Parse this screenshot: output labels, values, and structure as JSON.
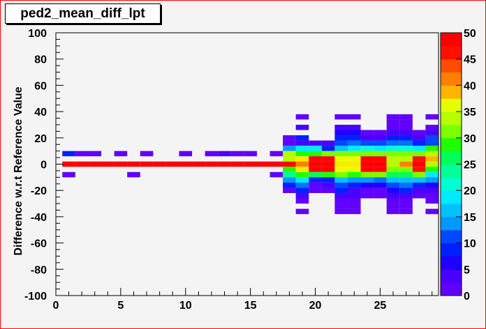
{
  "title": "ped2_mean_diff_lpt",
  "chart_data": {
    "type": "heatmap",
    "title": "ped2_mean_diff_lpt",
    "xlabel": "",
    "ylabel": "Difference w.r.t Reference Value",
    "xlim": [
      0,
      29.5
    ],
    "ylim": [
      -100,
      100
    ],
    "x_ticks": [
      0,
      5,
      10,
      15,
      20,
      25
    ],
    "y_ticks": [
      -100,
      -80,
      -60,
      -40,
      -20,
      0,
      20,
      40,
      60,
      80,
      100
    ],
    "color_scale": {
      "min": 0,
      "max": 50,
      "ticks": [
        0,
        5,
        10,
        15,
        20,
        25,
        30,
        35,
        40,
        45,
        50
      ]
    },
    "bin_width_x": 1,
    "bin_height_y": 4,
    "cells": [
      {
        "x": 1,
        "y": 0,
        "v": 50
      },
      {
        "x": 1,
        "y": 8,
        "v": 7
      },
      {
        "x": 1,
        "y": -8,
        "v": 2
      },
      {
        "x": 2,
        "y": 0,
        "v": 50
      },
      {
        "x": 2,
        "y": 8,
        "v": 2
      },
      {
        "x": 3,
        "y": 0,
        "v": 50
      },
      {
        "x": 3,
        "y": 8,
        "v": 2
      },
      {
        "x": 4,
        "y": 0,
        "v": 50
      },
      {
        "x": 5,
        "y": 0,
        "v": 50
      },
      {
        "x": 5,
        "y": 8,
        "v": 2
      },
      {
        "x": 6,
        "y": 0,
        "v": 50
      },
      {
        "x": 6,
        "y": -8,
        "v": 2
      },
      {
        "x": 7,
        "y": 0,
        "v": 50
      },
      {
        "x": 7,
        "y": 8,
        "v": 2
      },
      {
        "x": 8,
        "y": 0,
        "v": 50
      },
      {
        "x": 9,
        "y": 0,
        "v": 50
      },
      {
        "x": 10,
        "y": 0,
        "v": 50
      },
      {
        "x": 10,
        "y": 8,
        "v": 2
      },
      {
        "x": 11,
        "y": 0,
        "v": 50
      },
      {
        "x": 12,
        "y": 0,
        "v": 50
      },
      {
        "x": 12,
        "y": 8,
        "v": 2
      },
      {
        "x": 13,
        "y": 0,
        "v": 50
      },
      {
        "x": 13,
        "y": 8,
        "v": 4
      },
      {
        "x": 14,
        "y": 0,
        "v": 50
      },
      {
        "x": 14,
        "y": 8,
        "v": 2
      },
      {
        "x": 15,
        "y": 0,
        "v": 50
      },
      {
        "x": 15,
        "y": 8,
        "v": 2
      },
      {
        "x": 16,
        "y": 0,
        "v": 50
      },
      {
        "x": 17,
        "y": 0,
        "v": 50
      },
      {
        "x": 17,
        "y": 8,
        "v": 2
      },
      {
        "x": 17,
        "y": -8,
        "v": 2
      },
      {
        "x": 18,
        "y": 0,
        "v": 50
      },
      {
        "x": 18,
        "y": 20,
        "v": 2
      },
      {
        "x": 18,
        "y": 16,
        "v": 2
      },
      {
        "x": 18,
        "y": 12,
        "v": 15
      },
      {
        "x": 18,
        "y": 8,
        "v": 33
      },
      {
        "x": 18,
        "y": 4,
        "v": 33
      },
      {
        "x": 18,
        "y": -4,
        "v": 29
      },
      {
        "x": 18,
        "y": -8,
        "v": 24
      },
      {
        "x": 18,
        "y": -12,
        "v": 15
      },
      {
        "x": 18,
        "y": -16,
        "v": 7
      },
      {
        "x": 18,
        "y": -20,
        "v": 2
      },
      {
        "x": 19,
        "y": 36,
        "v": 2
      },
      {
        "x": 19,
        "y": 28,
        "v": 4
      },
      {
        "x": 19,
        "y": 20,
        "v": 9
      },
      {
        "x": 19,
        "y": 16,
        "v": 4
      },
      {
        "x": 19,
        "y": 12,
        "v": 20
      },
      {
        "x": 19,
        "y": 8,
        "v": 28
      },
      {
        "x": 19,
        "y": 4,
        "v": 38
      },
      {
        "x": 19,
        "y": 0,
        "v": 42
      },
      {
        "x": 19,
        "y": -4,
        "v": 38
      },
      {
        "x": 19,
        "y": -8,
        "v": 28
      },
      {
        "x": 19,
        "y": -12,
        "v": 20
      },
      {
        "x": 19,
        "y": -16,
        "v": 12
      },
      {
        "x": 19,
        "y": -20,
        "v": 8
      },
      {
        "x": 19,
        "y": -24,
        "v": 4
      },
      {
        "x": 19,
        "y": -28,
        "v": 2
      },
      {
        "x": 19,
        "y": -36,
        "v": 2
      },
      {
        "x": 20,
        "y": 16,
        "v": 4
      },
      {
        "x": 20,
        "y": 12,
        "v": 20
      },
      {
        "x": 20,
        "y": 8,
        "v": 28
      },
      {
        "x": 20,
        "y": 4,
        "v": 48
      },
      {
        "x": 20,
        "y": 0,
        "v": 50
      },
      {
        "x": 20,
        "y": -4,
        "v": 48
      },
      {
        "x": 20,
        "y": -8,
        "v": 27
      },
      {
        "x": 20,
        "y": -12,
        "v": 8
      },
      {
        "x": 20,
        "y": -16,
        "v": 2
      },
      {
        "x": 20,
        "y": -20,
        "v": 2
      },
      {
        "x": 21,
        "y": 16,
        "v": 4
      },
      {
        "x": 21,
        "y": 12,
        "v": 7
      },
      {
        "x": 21,
        "y": 8,
        "v": 30
      },
      {
        "x": 21,
        "y": 4,
        "v": 50
      },
      {
        "x": 21,
        "y": 0,
        "v": 50
      },
      {
        "x": 21,
        "y": -4,
        "v": 50
      },
      {
        "x": 21,
        "y": -8,
        "v": 28
      },
      {
        "x": 21,
        "y": -12,
        "v": 8
      },
      {
        "x": 21,
        "y": -16,
        "v": 4
      },
      {
        "x": 21,
        "y": -20,
        "v": 2
      },
      {
        "x": 22,
        "y": 36,
        "v": 2
      },
      {
        "x": 22,
        "y": 28,
        "v": 4
      },
      {
        "x": 22,
        "y": 24,
        "v": 6
      },
      {
        "x": 22,
        "y": 20,
        "v": 9
      },
      {
        "x": 22,
        "y": 16,
        "v": 10
      },
      {
        "x": 22,
        "y": 12,
        "v": 17
      },
      {
        "x": 22,
        "y": 8,
        "v": 30
      },
      {
        "x": 22,
        "y": 4,
        "v": 36
      },
      {
        "x": 22,
        "y": 0,
        "v": 37
      },
      {
        "x": 22,
        "y": -4,
        "v": 36
      },
      {
        "x": 22,
        "y": -8,
        "v": 30
      },
      {
        "x": 22,
        "y": -12,
        "v": 18
      },
      {
        "x": 22,
        "y": -16,
        "v": 10
      },
      {
        "x": 22,
        "y": -20,
        "v": 7
      },
      {
        "x": 22,
        "y": -24,
        "v": 4
      },
      {
        "x": 22,
        "y": -28,
        "v": 2
      },
      {
        "x": 22,
        "y": -32,
        "v": 2
      },
      {
        "x": 22,
        "y": -36,
        "v": 2
      },
      {
        "x": 23,
        "y": 36,
        "v": 2
      },
      {
        "x": 23,
        "y": 28,
        "v": 4
      },
      {
        "x": 23,
        "y": 24,
        "v": 6
      },
      {
        "x": 23,
        "y": 20,
        "v": 8
      },
      {
        "x": 23,
        "y": 16,
        "v": 12
      },
      {
        "x": 23,
        "y": 12,
        "v": 20
      },
      {
        "x": 23,
        "y": 8,
        "v": 30
      },
      {
        "x": 23,
        "y": 4,
        "v": 36
      },
      {
        "x": 23,
        "y": 0,
        "v": 37
      },
      {
        "x": 23,
        "y": -4,
        "v": 36
      },
      {
        "x": 23,
        "y": -8,
        "v": 28
      },
      {
        "x": 23,
        "y": -12,
        "v": 15
      },
      {
        "x": 23,
        "y": -16,
        "v": 8
      },
      {
        "x": 23,
        "y": -20,
        "v": 4
      },
      {
        "x": 23,
        "y": -24,
        "v": 4
      },
      {
        "x": 23,
        "y": -28,
        "v": 2
      },
      {
        "x": 23,
        "y": -32,
        "v": 2
      },
      {
        "x": 23,
        "y": -36,
        "v": 2
      },
      {
        "x": 24,
        "y": 24,
        "v": 2
      },
      {
        "x": 24,
        "y": 20,
        "v": 4
      },
      {
        "x": 24,
        "y": 16,
        "v": 10
      },
      {
        "x": 24,
        "y": 12,
        "v": 22
      },
      {
        "x": 24,
        "y": 8,
        "v": 30
      },
      {
        "x": 24,
        "y": 4,
        "v": 50
      },
      {
        "x": 24,
        "y": 0,
        "v": 50
      },
      {
        "x": 24,
        "y": -4,
        "v": 50
      },
      {
        "x": 24,
        "y": -8,
        "v": 30
      },
      {
        "x": 24,
        "y": -12,
        "v": 14
      },
      {
        "x": 24,
        "y": -16,
        "v": 6
      },
      {
        "x": 24,
        "y": -20,
        "v": 2
      },
      {
        "x": 24,
        "y": -24,
        "v": 2
      },
      {
        "x": 25,
        "y": 24,
        "v": 2
      },
      {
        "x": 25,
        "y": 20,
        "v": 4
      },
      {
        "x": 25,
        "y": 16,
        "v": 10
      },
      {
        "x": 25,
        "y": 12,
        "v": 20
      },
      {
        "x": 25,
        "y": 8,
        "v": 30
      },
      {
        "x": 25,
        "y": 4,
        "v": 50
      },
      {
        "x": 25,
        "y": 0,
        "v": 50
      },
      {
        "x": 25,
        "y": -4,
        "v": 50
      },
      {
        "x": 25,
        "y": -8,
        "v": 30
      },
      {
        "x": 25,
        "y": -12,
        "v": 12
      },
      {
        "x": 25,
        "y": -16,
        "v": 6
      },
      {
        "x": 25,
        "y": -20,
        "v": 2
      },
      {
        "x": 25,
        "y": -24,
        "v": 2
      },
      {
        "x": 26,
        "y": 36,
        "v": 2
      },
      {
        "x": 26,
        "y": 32,
        "v": 2
      },
      {
        "x": 26,
        "y": 28,
        "v": 2
      },
      {
        "x": 26,
        "y": 24,
        "v": 4
      },
      {
        "x": 26,
        "y": 20,
        "v": 8
      },
      {
        "x": 26,
        "y": 16,
        "v": 12
      },
      {
        "x": 26,
        "y": 12,
        "v": 22
      },
      {
        "x": 26,
        "y": 8,
        "v": 30
      },
      {
        "x": 26,
        "y": 4,
        "v": 32
      },
      {
        "x": 26,
        "y": 0,
        "v": 33
      },
      {
        "x": 26,
        "y": -4,
        "v": 30
      },
      {
        "x": 26,
        "y": -8,
        "v": 26
      },
      {
        "x": 26,
        "y": -12,
        "v": 16
      },
      {
        "x": 26,
        "y": -16,
        "v": 10
      },
      {
        "x": 26,
        "y": -20,
        "v": 6
      },
      {
        "x": 26,
        "y": -24,
        "v": 4
      },
      {
        "x": 26,
        "y": -28,
        "v": 2
      },
      {
        "x": 26,
        "y": -32,
        "v": 2
      },
      {
        "x": 26,
        "y": -36,
        "v": 2
      },
      {
        "x": 27,
        "y": 36,
        "v": 2
      },
      {
        "x": 27,
        "y": 32,
        "v": 2
      },
      {
        "x": 27,
        "y": 28,
        "v": 2
      },
      {
        "x": 27,
        "y": 24,
        "v": 4
      },
      {
        "x": 27,
        "y": 20,
        "v": 8
      },
      {
        "x": 27,
        "y": 16,
        "v": 12
      },
      {
        "x": 27,
        "y": 12,
        "v": 22
      },
      {
        "x": 27,
        "y": 8,
        "v": 30
      },
      {
        "x": 27,
        "y": 4,
        "v": 32
      },
      {
        "x": 27,
        "y": 0,
        "v": 42
      },
      {
        "x": 27,
        "y": -4,
        "v": 30
      },
      {
        "x": 27,
        "y": -8,
        "v": 26
      },
      {
        "x": 27,
        "y": -12,
        "v": 18
      },
      {
        "x": 27,
        "y": -16,
        "v": 12
      },
      {
        "x": 27,
        "y": -20,
        "v": 8
      },
      {
        "x": 27,
        "y": -24,
        "v": 4
      },
      {
        "x": 27,
        "y": -28,
        "v": 2
      },
      {
        "x": 27,
        "y": -32,
        "v": 2
      },
      {
        "x": 27,
        "y": -36,
        "v": 2
      },
      {
        "x": 28,
        "y": 24,
        "v": 2
      },
      {
        "x": 28,
        "y": 20,
        "v": 4
      },
      {
        "x": 28,
        "y": 16,
        "v": 8
      },
      {
        "x": 28,
        "y": 12,
        "v": 20
      },
      {
        "x": 28,
        "y": 8,
        "v": 30
      },
      {
        "x": 28,
        "y": 4,
        "v": 46
      },
      {
        "x": 28,
        "y": 0,
        "v": 50
      },
      {
        "x": 28,
        "y": -4,
        "v": 46
      },
      {
        "x": 28,
        "y": -8,
        "v": 30
      },
      {
        "x": 28,
        "y": -12,
        "v": 16
      },
      {
        "x": 28,
        "y": -16,
        "v": 8
      },
      {
        "x": 28,
        "y": -20,
        "v": 4
      },
      {
        "x": 28,
        "y": -24,
        "v": 2
      },
      {
        "x": 29,
        "y": 36,
        "v": 2
      },
      {
        "x": 29,
        "y": 28,
        "v": 2
      },
      {
        "x": 29,
        "y": 24,
        "v": 4
      },
      {
        "x": 29,
        "y": 20,
        "v": 10
      },
      {
        "x": 29,
        "y": 16,
        "v": 10
      },
      {
        "x": 29,
        "y": 12,
        "v": 28
      },
      {
        "x": 29,
        "y": 8,
        "v": 32
      },
      {
        "x": 29,
        "y": 4,
        "v": 40
      },
      {
        "x": 29,
        "y": 0,
        "v": 34
      },
      {
        "x": 29,
        "y": -4,
        "v": 28
      },
      {
        "x": 29,
        "y": -8,
        "v": 20
      },
      {
        "x": 29,
        "y": -12,
        "v": 14
      },
      {
        "x": 29,
        "y": -16,
        "v": 6
      },
      {
        "x": 29,
        "y": -20,
        "v": 4
      },
      {
        "x": 29,
        "y": -24,
        "v": 2
      },
      {
        "x": 29,
        "y": -28,
        "v": 2
      },
      {
        "x": 29,
        "y": -36,
        "v": 2
      }
    ]
  }
}
